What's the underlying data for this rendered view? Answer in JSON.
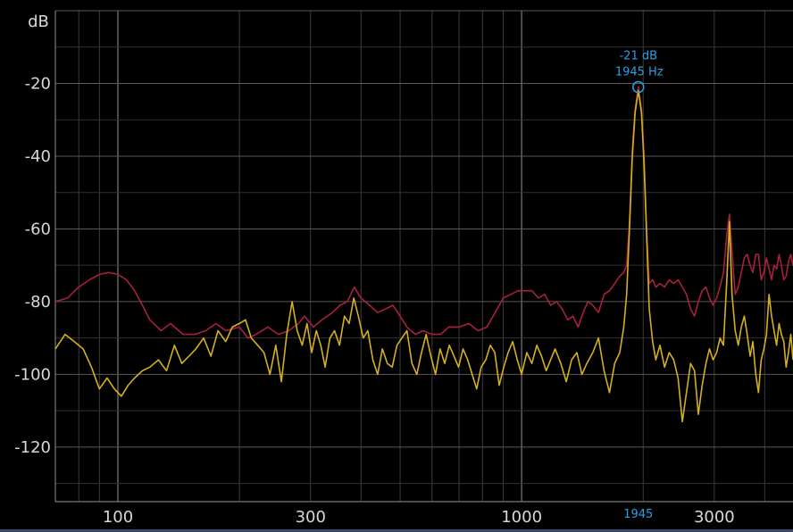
{
  "chart_data": {
    "type": "line",
    "ylabel": "dB",
    "x_scale": "log",
    "xlim": [
      70,
      4700
    ],
    "ylim": [
      -135,
      0
    ],
    "grid": true,
    "x_ticks": [
      {
        "value": 100,
        "label": "100"
      },
      {
        "value": 300,
        "label": "300"
      },
      {
        "value": 1000,
        "label": "1000"
      },
      {
        "value": 3000,
        "label": "3000"
      }
    ],
    "y_ticks": [
      {
        "value": -20,
        "label": "-20"
      },
      {
        "value": -40,
        "label": "-40"
      },
      {
        "value": -60,
        "label": "-60"
      },
      {
        "value": -80,
        "label": "-80"
      },
      {
        "value": -100,
        "label": "-100"
      },
      {
        "value": -120,
        "label": "-120"
      }
    ],
    "peak_marker": {
      "freq": 1945,
      "level": -21,
      "level_label": "-21 dB",
      "freq_label": "1945 Hz",
      "axis_label": "1945"
    },
    "series": [
      {
        "color": "#a8203a",
        "points": [
          [
            70,
            -80
          ],
          [
            75,
            -79
          ],
          [
            80,
            -76
          ],
          [
            85,
            -74
          ],
          [
            90,
            -72.5
          ],
          [
            95,
            -72
          ],
          [
            100,
            -72.5
          ],
          [
            105,
            -74
          ],
          [
            110,
            -77
          ],
          [
            115,
            -81
          ],
          [
            120,
            -85
          ],
          [
            128,
            -88
          ],
          [
            135,
            -86
          ],
          [
            145,
            -89
          ],
          [
            155,
            -89
          ],
          [
            165,
            -88
          ],
          [
            175,
            -86
          ],
          [
            185,
            -88
          ],
          [
            200,
            -87
          ],
          [
            210,
            -90
          ],
          [
            220,
            -89
          ],
          [
            235,
            -87
          ],
          [
            250,
            -89
          ],
          [
            265,
            -88
          ],
          [
            280,
            -86
          ],
          [
            290,
            -84
          ],
          [
            305,
            -87
          ],
          [
            320,
            -85
          ],
          [
            340,
            -83
          ],
          [
            355,
            -81
          ],
          [
            370,
            -80
          ],
          [
            385,
            -76
          ],
          [
            400,
            -79
          ],
          [
            420,
            -81
          ],
          [
            440,
            -83
          ],
          [
            460,
            -82
          ],
          [
            480,
            -81
          ],
          [
            500,
            -84
          ],
          [
            520,
            -87
          ],
          [
            545,
            -89
          ],
          [
            570,
            -88
          ],
          [
            600,
            -89
          ],
          [
            630,
            -89
          ],
          [
            660,
            -87
          ],
          [
            700,
            -87
          ],
          [
            740,
            -86
          ],
          [
            780,
            -88
          ],
          [
            820,
            -87
          ],
          [
            860,
            -83
          ],
          [
            900,
            -79
          ],
          [
            940,
            -78
          ],
          [
            980,
            -77
          ],
          [
            1020,
            -77
          ],
          [
            1060,
            -77
          ],
          [
            1100,
            -79
          ],
          [
            1140,
            -78
          ],
          [
            1180,
            -81
          ],
          [
            1220,
            -80
          ],
          [
            1260,
            -82
          ],
          [
            1300,
            -85
          ],
          [
            1340,
            -84
          ],
          [
            1380,
            -87
          ],
          [
            1420,
            -83
          ],
          [
            1460,
            -80
          ],
          [
            1500,
            -81
          ],
          [
            1550,
            -83
          ],
          [
            1600,
            -78
          ],
          [
            1650,
            -77
          ],
          [
            1700,
            -75
          ],
          [
            1750,
            -73
          ],
          [
            1790,
            -72
          ],
          [
            1820,
            -70
          ],
          [
            1850,
            -58
          ],
          [
            1880,
            -38
          ],
          [
            1910,
            -27
          ],
          [
            1945,
            -21
          ],
          [
            1980,
            -27
          ],
          [
            2010,
            -40
          ],
          [
            2040,
            -60
          ],
          [
            2070,
            -75
          ],
          [
            2110,
            -74
          ],
          [
            2150,
            -76
          ],
          [
            2200,
            -75
          ],
          [
            2260,
            -76
          ],
          [
            2320,
            -74
          ],
          [
            2380,
            -75
          ],
          [
            2440,
            -74
          ],
          [
            2500,
            -76
          ],
          [
            2560,
            -78
          ],
          [
            2620,
            -82
          ],
          [
            2680,
            -84
          ],
          [
            2740,
            -80
          ],
          [
            2800,
            -77
          ],
          [
            2860,
            -76
          ],
          [
            2920,
            -79
          ],
          [
            2980,
            -81
          ],
          [
            3040,
            -79
          ],
          [
            3100,
            -76
          ],
          [
            3160,
            -72
          ],
          [
            3220,
            -62
          ],
          [
            3270,
            -56
          ],
          [
            3320,
            -66
          ],
          [
            3380,
            -78
          ],
          [
            3440,
            -76
          ],
          [
            3500,
            -72
          ],
          [
            3560,
            -68
          ],
          [
            3620,
            -67
          ],
          [
            3680,
            -70
          ],
          [
            3740,
            -72
          ],
          [
            3800,
            -67
          ],
          [
            3860,
            -67
          ],
          [
            3920,
            -74
          ],
          [
            3980,
            -72
          ],
          [
            4040,
            -68
          ],
          [
            4100,
            -71
          ],
          [
            4160,
            -74
          ],
          [
            4220,
            -70
          ],
          [
            4280,
            -71
          ],
          [
            4340,
            -67
          ],
          [
            4400,
            -70
          ],
          [
            4460,
            -74
          ],
          [
            4520,
            -73
          ],
          [
            4580,
            -69
          ],
          [
            4640,
            -67
          ],
          [
            4700,
            -70
          ]
        ]
      },
      {
        "color": "#d4b020",
        "points": [
          [
            70,
            -93
          ],
          [
            74,
            -89
          ],
          [
            78,
            -91
          ],
          [
            82,
            -93
          ],
          [
            86,
            -98
          ],
          [
            90,
            -104
          ],
          [
            94,
            -101
          ],
          [
            98,
            -104
          ],
          [
            102,
            -106
          ],
          [
            106,
            -103
          ],
          [
            110,
            -101
          ],
          [
            115,
            -99
          ],
          [
            120,
            -98
          ],
          [
            126,
            -96
          ],
          [
            132,
            -99
          ],
          [
            138,
            -92
          ],
          [
            144,
            -97
          ],
          [
            150,
            -95
          ],
          [
            156,
            -93
          ],
          [
            163,
            -90
          ],
          [
            170,
            -95
          ],
          [
            177,
            -88
          ],
          [
            185,
            -91
          ],
          [
            192,
            -87
          ],
          [
            200,
            -86
          ],
          [
            207,
            -85
          ],
          [
            214,
            -90
          ],
          [
            222,
            -92
          ],
          [
            230,
            -94
          ],
          [
            238,
            -100
          ],
          [
            246,
            -92
          ],
          [
            254,
            -102
          ],
          [
            262,
            -89
          ],
          [
            270,
            -80
          ],
          [
            278,
            -88
          ],
          [
            286,
            -92
          ],
          [
            294,
            -86
          ],
          [
            302,
            -94
          ],
          [
            310,
            -88
          ],
          [
            318,
            -92
          ],
          [
            326,
            -98
          ],
          [
            335,
            -90
          ],
          [
            344,
            -88
          ],
          [
            354,
            -92
          ],
          [
            364,
            -84
          ],
          [
            374,
            -86
          ],
          [
            384,
            -79
          ],
          [
            394,
            -84
          ],
          [
            405,
            -90
          ],
          [
            416,
            -88
          ],
          [
            428,
            -96
          ],
          [
            440,
            -100
          ],
          [
            452,
            -93
          ],
          [
            465,
            -97
          ],
          [
            478,
            -98
          ],
          [
            491,
            -92
          ],
          [
            505,
            -90
          ],
          [
            520,
            -88
          ],
          [
            535,
            -97
          ],
          [
            550,
            -100
          ],
          [
            565,
            -94
          ],
          [
            580,
            -89
          ],
          [
            596,
            -95
          ],
          [
            612,
            -100
          ],
          [
            628,
            -93
          ],
          [
            645,
            -97
          ],
          [
            662,
            -92
          ],
          [
            680,
            -95
          ],
          [
            698,
            -98
          ],
          [
            716,
            -93
          ],
          [
            735,
            -96
          ],
          [
            754,
            -100
          ],
          [
            774,
            -104
          ],
          [
            794,
            -98
          ],
          [
            815,
            -96
          ],
          [
            836,
            -92
          ],
          [
            858,
            -94
          ],
          [
            880,
            -103
          ],
          [
            903,
            -98
          ],
          [
            926,
            -94
          ],
          [
            950,
            -91
          ],
          [
            975,
            -96
          ],
          [
            1000,
            -100
          ],
          [
            1030,
            -94
          ],
          [
            1060,
            -97
          ],
          [
            1090,
            -92
          ],
          [
            1120,
            -95
          ],
          [
            1150,
            -99
          ],
          [
            1180,
            -96
          ],
          [
            1210,
            -93
          ],
          [
            1250,
            -97
          ],
          [
            1290,
            -102
          ],
          [
            1330,
            -96
          ],
          [
            1370,
            -94
          ],
          [
            1410,
            -100
          ],
          [
            1450,
            -97
          ],
          [
            1500,
            -94
          ],
          [
            1550,
            -90
          ],
          [
            1600,
            -99
          ],
          [
            1650,
            -105
          ],
          [
            1700,
            -97
          ],
          [
            1750,
            -94
          ],
          [
            1790,
            -87
          ],
          [
            1820,
            -78
          ],
          [
            1850,
            -60
          ],
          [
            1880,
            -40
          ],
          [
            1910,
            -28
          ],
          [
            1945,
            -22
          ],
          [
            1980,
            -28
          ],
          [
            2010,
            -42
          ],
          [
            2040,
            -62
          ],
          [
            2070,
            -82
          ],
          [
            2110,
            -91
          ],
          [
            2150,
            -96
          ],
          [
            2200,
            -92
          ],
          [
            2260,
            -98
          ],
          [
            2320,
            -94
          ],
          [
            2380,
            -96
          ],
          [
            2440,
            -101
          ],
          [
            2500,
            -113
          ],
          [
            2560,
            -105
          ],
          [
            2620,
            -97
          ],
          [
            2680,
            -99
          ],
          [
            2740,
            -111
          ],
          [
            2800,
            -103
          ],
          [
            2860,
            -97
          ],
          [
            2920,
            -93
          ],
          [
            2980,
            -96
          ],
          [
            3040,
            -94
          ],
          [
            3100,
            -90
          ],
          [
            3160,
            -92
          ],
          [
            3220,
            -75
          ],
          [
            3270,
            -58
          ],
          [
            3320,
            -78
          ],
          [
            3380,
            -88
          ],
          [
            3440,
            -92
          ],
          [
            3500,
            -87
          ],
          [
            3560,
            -84
          ],
          [
            3620,
            -89
          ],
          [
            3680,
            -95
          ],
          [
            3740,
            -91
          ],
          [
            3800,
            -100
          ],
          [
            3860,
            -105
          ],
          [
            3920,
            -96
          ],
          [
            3980,
            -93
          ],
          [
            4040,
            -89
          ],
          [
            4100,
            -78
          ],
          [
            4160,
            -84
          ],
          [
            4220,
            -88
          ],
          [
            4280,
            -92
          ],
          [
            4340,
            -86
          ],
          [
            4400,
            -89
          ],
          [
            4460,
            -91
          ],
          [
            4520,
            -98
          ],
          [
            4580,
            -94
          ],
          [
            4640,
            -89
          ],
          [
            4700,
            -96
          ]
        ]
      }
    ]
  }
}
